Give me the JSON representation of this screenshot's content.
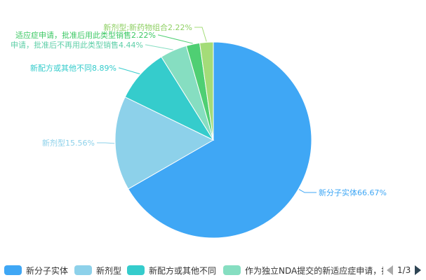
{
  "chart_data": {
    "type": "pie",
    "title": "",
    "slices": [
      {
        "name": "新分子实体",
        "value": 66.67,
        "label": "新分子实体66.67%",
        "color": "#3fa7f5"
      },
      {
        "name": "新剂型",
        "value": 15.56,
        "label": "新剂型15.56%",
        "color": "#8dd1ea"
      },
      {
        "name": "新配方或其他不同",
        "value": 8.89,
        "label": "新配方或其他不同8.89%",
        "color": "#35cccc"
      },
      {
        "name": "作为独立NDA提交的新适应症申请，批准后不再用此类型销售",
        "value": 4.44,
        "label": "申请，批准后不再用此类型销售4.44%",
        "color": "#86dec1"
      },
      {
        "name": "新适应症申请，批准后用此类型销售",
        "value": 2.22,
        "label": "适应症申请，批准后用此类型销售2.22%",
        "color": "#4fcf73"
      },
      {
        "name": "新剂型;新药物组合",
        "value": 2.22,
        "label": "新剂型;新药物组合2.22%",
        "color": "#a4dc78"
      }
    ],
    "legend_position": "bottom"
  },
  "legend": {
    "items": [
      {
        "label": "新分子实体",
        "color": "#3fa7f5"
      },
      {
        "label": "新剂型",
        "color": "#8dd1ea"
      },
      {
        "label": "新配方或其他不同",
        "color": "#35cccc"
      },
      {
        "label": "作为独立NDA提交的新适应症申请，批准后不再用此类型销售",
        "color": "#86dec1"
      }
    ],
    "page": "1/3"
  }
}
